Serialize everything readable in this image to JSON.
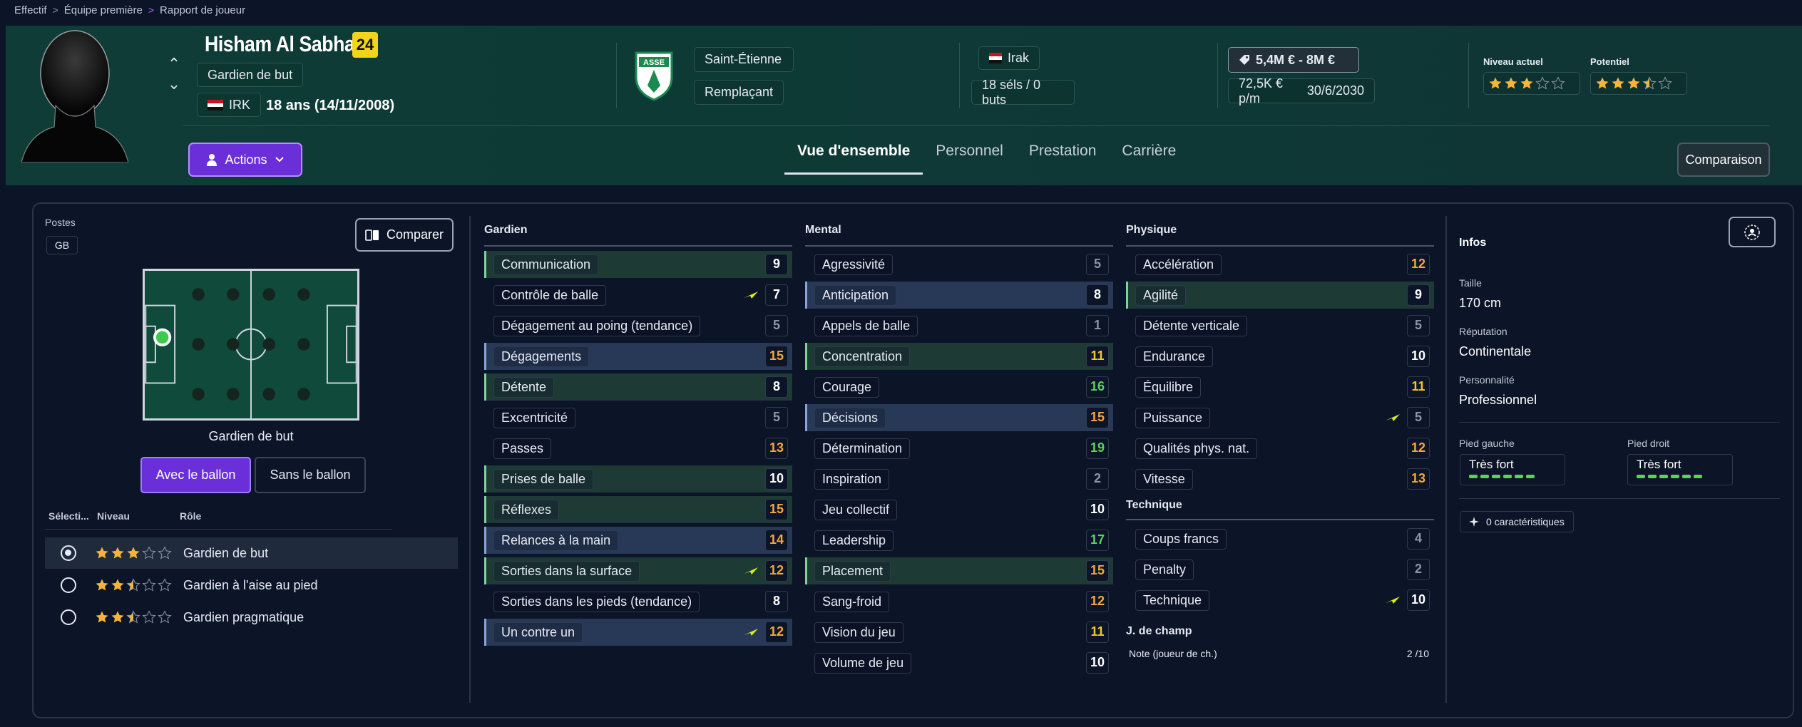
{
  "breadcrumb": [
    "Effectif",
    "Équipe première",
    "Rapport de joueur"
  ],
  "player": {
    "name": "Hisham Al Sabha",
    "number": "24",
    "position": "Gardien de but",
    "nationality_code": "IRK",
    "age": "18 ans (14/11/2008)",
    "club": "Saint-Étienne",
    "squad_status": "Remplaçant",
    "country": "Irak",
    "caps": "18 séls / 0 buts",
    "value": "5,4M € - 8M €",
    "wage": "72,5K € p/m",
    "contract_end": "30/6/2030",
    "current_label": "Niveau actuel",
    "potential_label": "Potentiel",
    "current_stars": 3,
    "potential_stars": 3.5,
    "club_badge_text": "ASSE"
  },
  "actions_label": "Actions",
  "tabs": [
    "Vue d'ensemble",
    "Personnel",
    "Prestation",
    "Carrière"
  ],
  "comparaison_label": "Comparaison",
  "left": {
    "postes_label": "Postes",
    "poste_chip": "GB",
    "comparer_label": "Comparer",
    "position_name": "Gardien de but",
    "avec_label": "Avec le ballon",
    "sans_label": "Sans le ballon",
    "role_headers": [
      "Sélecti...",
      "Niveau",
      "Rôle"
    ],
    "roles": [
      {
        "name": "Gardien de but",
        "stars": 3,
        "selected": true
      },
      {
        "name": "Gardien à l'aise au pied",
        "stars": 2.5,
        "selected": false
      },
      {
        "name": "Gardien pragmatique",
        "stars": 2.5,
        "selected": false
      }
    ]
  },
  "gardien": {
    "title": "Gardien",
    "attrs": [
      {
        "name": "Communication",
        "value": "9",
        "hl": "green",
        "color": "mid"
      },
      {
        "name": "Contrôle de balle",
        "value": "7",
        "hl": "",
        "color": "mid",
        "trend": true
      },
      {
        "name": "Dégagement au poing (tendance)",
        "value": "5",
        "hl": "",
        "color": "low"
      },
      {
        "name": "Dégagements",
        "value": "15",
        "hl": "blue",
        "color": "orange"
      },
      {
        "name": "Détente",
        "value": "8",
        "hl": "green",
        "color": "mid"
      },
      {
        "name": "Excentricité",
        "value": "5",
        "hl": "",
        "color": "low"
      },
      {
        "name": "Passes",
        "value": "13",
        "hl": "",
        "color": "orange"
      },
      {
        "name": "Prises de balle",
        "value": "10",
        "hl": "green",
        "color": "mid"
      },
      {
        "name": "Réflexes",
        "value": "15",
        "hl": "green",
        "color": "orange"
      },
      {
        "name": "Relances à la main",
        "value": "14",
        "hl": "blue",
        "color": "orange"
      },
      {
        "name": "Sorties dans la surface",
        "value": "12",
        "hl": "green",
        "color": "orange",
        "trend": true
      },
      {
        "name": "Sorties dans les pieds (tendance)",
        "value": "8",
        "hl": "",
        "color": "mid"
      },
      {
        "name": "Un contre un",
        "value": "12",
        "hl": "blue",
        "color": "orange",
        "trend": true
      }
    ]
  },
  "mental": {
    "title": "Mental",
    "attrs": [
      {
        "name": "Agressivité",
        "value": "5",
        "hl": "",
        "color": "low"
      },
      {
        "name": "Anticipation",
        "value": "8",
        "hl": "blue",
        "color": "mid"
      },
      {
        "name": "Appels de balle",
        "value": "1",
        "hl": "",
        "color": "low"
      },
      {
        "name": "Concentration",
        "value": "11",
        "hl": "green",
        "color": "yellow"
      },
      {
        "name": "Courage",
        "value": "16",
        "hl": "",
        "color": "green"
      },
      {
        "name": "Décisions",
        "value": "15",
        "hl": "blue",
        "color": "orange"
      },
      {
        "name": "Détermination",
        "value": "19",
        "hl": "",
        "color": "green"
      },
      {
        "name": "Inspiration",
        "value": "2",
        "hl": "",
        "color": "low"
      },
      {
        "name": "Jeu collectif",
        "value": "10",
        "hl": "",
        "color": "mid"
      },
      {
        "name": "Leadership",
        "value": "17",
        "hl": "",
        "color": "green"
      },
      {
        "name": "Placement",
        "value": "15",
        "hl": "green",
        "color": "orange"
      },
      {
        "name": "Sang-froid",
        "value": "12",
        "hl": "",
        "color": "orange"
      },
      {
        "name": "Vision du jeu",
        "value": "11",
        "hl": "",
        "color": "yellow"
      },
      {
        "name": "Volume de jeu",
        "value": "10",
        "hl": "",
        "color": "mid"
      }
    ]
  },
  "physique": {
    "title": "Physique",
    "attrs": [
      {
        "name": "Accélération",
        "value": "12",
        "hl": "",
        "color": "orange"
      },
      {
        "name": "Agilité",
        "value": "9",
        "hl": "green",
        "color": "mid"
      },
      {
        "name": "Détente verticale",
        "value": "5",
        "hl": "",
        "color": "low"
      },
      {
        "name": "Endurance",
        "value": "10",
        "hl": "",
        "color": "mid"
      },
      {
        "name": "Équilibre",
        "value": "11",
        "hl": "",
        "color": "yellow"
      },
      {
        "name": "Puissance",
        "value": "5",
        "hl": "",
        "color": "low",
        "trend": true
      },
      {
        "name": "Qualités phys. nat.",
        "value": "12",
        "hl": "",
        "color": "orange"
      },
      {
        "name": "Vitesse",
        "value": "13",
        "hl": "",
        "color": "orange"
      }
    ]
  },
  "technique": {
    "title": "Technique",
    "attrs": [
      {
        "name": "Coups francs",
        "value": "4",
        "hl": "",
        "color": "low"
      },
      {
        "name": "Penalty",
        "value": "2",
        "hl": "",
        "color": "low"
      },
      {
        "name": "Technique",
        "value": "10",
        "hl": "",
        "color": "mid",
        "trend": true
      }
    ]
  },
  "jchamp": {
    "title": "J. de champ",
    "note_label": "Note (joueur de ch.)",
    "note_value": "2 /10"
  },
  "infos": {
    "title": "Infos",
    "taille_label": "Taille",
    "taille": "170 cm",
    "reputation_label": "Réputation",
    "reputation": "Continentale",
    "personnalite_label": "Personnalité",
    "personnalite": "Professionnel",
    "pied_gauche_label": "Pied gauche",
    "pied_gauche": "Très fort",
    "pied_droit_label": "Pied droit",
    "pied_droit": "Très fort",
    "caracteristiques": "0 caractéristiques"
  },
  "colors": {
    "accent": "#6a2fd8",
    "star": "#f6b53a",
    "value_orange": "#f6a63a",
    "value_yellow": "#f3c927",
    "value_green": "#5dd25b",
    "trend": "#d7ee1a"
  }
}
